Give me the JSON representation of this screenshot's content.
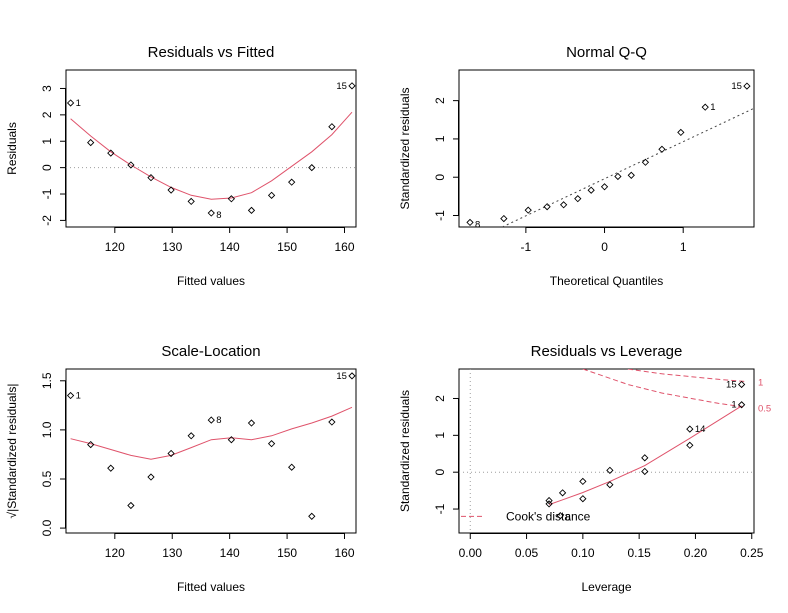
{
  "chart_data": [
    {
      "type": "scatter",
      "title": "Residuals vs Fitted",
      "xlabel": "Fitted values",
      "ylabel": "Residuals",
      "xlim": [
        111.5,
        162
      ],
      "ylim": [
        -2.25,
        3.7
      ],
      "xticks": [
        120,
        130,
        140,
        150,
        160
      ],
      "yticks": [
        -2,
        -1,
        0,
        1,
        2,
        3
      ],
      "hline": 0,
      "points": [
        {
          "x": 112.3,
          "y": 2.45,
          "label": "1"
        },
        {
          "x": 115.8,
          "y": 0.95
        },
        {
          "x": 119.3,
          "y": 0.55
        },
        {
          "x": 122.8,
          "y": 0.1
        },
        {
          "x": 126.3,
          "y": -0.38
        },
        {
          "x": 129.8,
          "y": -0.85
        },
        {
          "x": 133.3,
          "y": -1.28
        },
        {
          "x": 136.8,
          "y": -1.72,
          "label": "8"
        },
        {
          "x": 140.3,
          "y": -1.18
        },
        {
          "x": 143.8,
          "y": -1.62
        },
        {
          "x": 147.3,
          "y": -1.05
        },
        {
          "x": 150.8,
          "y": -0.55
        },
        {
          "x": 154.3,
          "y": 0.0
        },
        {
          "x": 157.8,
          "y": 1.55
        },
        {
          "x": 161.3,
          "y": 3.1,
          "label": "15"
        }
      ],
      "smooth": [
        [
          112.3,
          1.85
        ],
        [
          115.8,
          1.2
        ],
        [
          119.3,
          0.6
        ],
        [
          122.8,
          0.1
        ],
        [
          126.3,
          -0.35
        ],
        [
          129.8,
          -0.75
        ],
        [
          133.3,
          -1.05
        ],
        [
          136.8,
          -1.2
        ],
        [
          140.3,
          -1.15
        ],
        [
          143.8,
          -0.95
        ],
        [
          147.3,
          -0.5
        ],
        [
          150.8,
          0.05
        ],
        [
          154.3,
          0.6
        ],
        [
          157.8,
          1.25
        ],
        [
          161.3,
          2.1
        ]
      ]
    },
    {
      "type": "scatter",
      "title": "Normal Q-Q",
      "xlabel": "Theoretical Quantiles",
      "ylabel": "Standardized residuals",
      "xlim": [
        -1.85,
        1.9
      ],
      "ylim": [
        -1.3,
        2.8
      ],
      "xticks": [
        -1,
        0,
        1
      ],
      "yticks": [
        -1,
        0,
        1,
        2
      ],
      "refline": [
        [
          -1.3,
          -1.3
        ],
        [
          1.9,
          1.8
        ]
      ],
      "points": [
        {
          "x": -1.71,
          "y": -1.18,
          "label": "8"
        },
        {
          "x": -1.28,
          "y": -1.08
        },
        {
          "x": -0.97,
          "y": -0.86
        },
        {
          "x": -0.73,
          "y": -0.77
        },
        {
          "x": -0.52,
          "y": -0.72
        },
        {
          "x": -0.34,
          "y": -0.56
        },
        {
          "x": -0.17,
          "y": -0.34
        },
        {
          "x": 0.0,
          "y": -0.25
        },
        {
          "x": 0.17,
          "y": 0.02
        },
        {
          "x": 0.34,
          "y": 0.05
        },
        {
          "x": 0.52,
          "y": 0.39
        },
        {
          "x": 0.73,
          "y": 0.73
        },
        {
          "x": 0.97,
          "y": 1.17
        },
        {
          "x": 1.28,
          "y": 1.83,
          "label": "1"
        },
        {
          "x": 1.81,
          "y": 2.38,
          "label": "15"
        }
      ]
    },
    {
      "type": "scatter",
      "title": "Scale-Location",
      "xlabel": "Fitted values",
      "ylabel": "√|Standardized residuals|",
      "xlim": [
        111.5,
        162
      ],
      "ylim": [
        -0.05,
        1.62
      ],
      "xticks": [
        120,
        130,
        140,
        150,
        160
      ],
      "yticks": [
        0.0,
        0.5,
        1.0,
        1.5
      ],
      "points": [
        {
          "x": 112.3,
          "y": 1.35,
          "label": "1"
        },
        {
          "x": 115.8,
          "y": 0.85
        },
        {
          "x": 119.3,
          "y": 0.61
        },
        {
          "x": 122.8,
          "y": 0.23
        },
        {
          "x": 126.3,
          "y": 0.52
        },
        {
          "x": 129.8,
          "y": 0.76
        },
        {
          "x": 133.3,
          "y": 0.94
        },
        {
          "x": 136.8,
          "y": 1.1,
          "label": "8"
        },
        {
          "x": 140.3,
          "y": 0.9
        },
        {
          "x": 143.8,
          "y": 1.07
        },
        {
          "x": 147.3,
          "y": 0.86
        },
        {
          "x": 150.8,
          "y": 0.62
        },
        {
          "x": 154.3,
          "y": 0.12
        },
        {
          "x": 157.8,
          "y": 1.08
        },
        {
          "x": 161.3,
          "y": 1.55,
          "label": "15"
        }
      ],
      "smooth": [
        [
          112.3,
          0.91
        ],
        [
          115.8,
          0.86
        ],
        [
          119.3,
          0.8
        ],
        [
          122.8,
          0.74
        ],
        [
          126.3,
          0.7
        ],
        [
          129.8,
          0.74
        ],
        [
          133.3,
          0.82
        ],
        [
          136.8,
          0.9
        ],
        [
          140.3,
          0.92
        ],
        [
          143.8,
          0.9
        ],
        [
          147.3,
          0.94
        ],
        [
          150.8,
          1.01
        ],
        [
          154.3,
          1.07
        ],
        [
          157.8,
          1.14
        ],
        [
          161.3,
          1.23
        ]
      ]
    },
    {
      "type": "scatter",
      "title": "Residuals vs Leverage",
      "xlabel": "Leverage",
      "ylabel": "Standardized residuals",
      "xlim": [
        -0.01,
        0.252
      ],
      "ylim": [
        -1.65,
        2.8
      ],
      "xticks": [
        0.0,
        0.05,
        0.1,
        0.15,
        0.2,
        0.25
      ],
      "ytickvalues": [
        -1,
        0,
        1,
        2
      ],
      "yticks": [
        "-1",
        "0",
        "1",
        "2"
      ],
      "xticklabels": [
        "0.00",
        "0.05",
        "0.10",
        "0.15",
        "0.20",
        "0.25"
      ],
      "hline": 0,
      "vline": 0,
      "points": [
        {
          "x": 0.07,
          "y": -0.77
        },
        {
          "x": 0.07,
          "y": -0.86
        },
        {
          "x": 0.082,
          "y": -0.56
        },
        {
          "x": 0.08,
          "y": -1.18,
          "label": "8"
        },
        {
          "x": 0.1,
          "y": -0.72
        },
        {
          "x": 0.1,
          "y": -0.25
        },
        {
          "x": 0.124,
          "y": 0.05
        },
        {
          "x": 0.124,
          "y": -0.34
        },
        {
          "x": 0.155,
          "y": 0.02
        },
        {
          "x": 0.155,
          "y": 0.39
        },
        {
          "x": 0.195,
          "y": 1.17,
          "label": "14"
        },
        {
          "x": 0.195,
          "y": 0.73
        },
        {
          "x": 0.241,
          "y": 1.83,
          "label": "1"
        },
        {
          "x": 0.241,
          "y": 2.38,
          "label": "15"
        }
      ],
      "smooth": [
        [
          0.07,
          -0.88
        ],
        [
          0.082,
          -0.75
        ],
        [
          0.1,
          -0.55
        ],
        [
          0.124,
          -0.25
        ],
        [
          0.155,
          0.18
        ],
        [
          0.195,
          0.92
        ],
        [
          0.241,
          1.8
        ]
      ],
      "cook_levels": [
        {
          "label": "1",
          "points": [
            [
              0.14,
              2.8
            ],
            [
              0.17,
              2.67
            ],
            [
              0.2,
              2.58
            ],
            [
              0.22,
              2.52
            ],
            [
              0.245,
              2.46
            ]
          ]
        },
        {
          "label": "0.5",
          "points": [
            [
              0.1,
              2.8
            ],
            [
              0.14,
              2.38
            ],
            [
              0.17,
              2.15
            ],
            [
              0.2,
              1.98
            ],
            [
              0.22,
              1.87
            ],
            [
              0.245,
              1.76
            ]
          ]
        }
      ],
      "legend": {
        "label": "Cook's distance",
        "placement": "bottom-left"
      }
    }
  ]
}
